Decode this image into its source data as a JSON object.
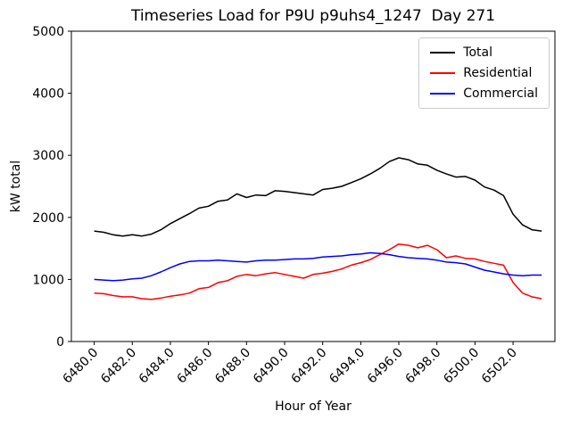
{
  "chart_data": {
    "type": "line",
    "title": "Timeseries Load for P9U p9uhs4_1247  Day 271",
    "xlabel": "Hour of Year",
    "ylabel": "kW total",
    "xlim": [
      6478.8,
      6504.2
    ],
    "ylim": [
      0,
      5000
    ],
    "grid": false,
    "legend_position": "upper right",
    "xticks": [
      6480,
      6482,
      6484,
      6486,
      6488,
      6490,
      6492,
      6494,
      6496,
      6498,
      6500,
      6502
    ],
    "xtick_labels": [
      "6480.0",
      "6482.0",
      "6484.0",
      "6486.0",
      "6488.0",
      "6490.0",
      "6492.0",
      "6494.0",
      "6496.0",
      "6498.0",
      "6500.0",
      "6502.0"
    ],
    "yticks": [
      0,
      1000,
      2000,
      3000,
      4000,
      5000
    ],
    "ytick_labels": [
      "0",
      "1000",
      "2000",
      "3000",
      "4000",
      "5000"
    ],
    "x": [
      6480.0,
      6480.5,
      6481.0,
      6481.5,
      6482.0,
      6482.5,
      6483.0,
      6483.5,
      6484.0,
      6484.5,
      6485.0,
      6485.5,
      6486.0,
      6486.5,
      6487.0,
      6487.5,
      6488.0,
      6488.5,
      6489.0,
      6489.5,
      6490.0,
      6490.5,
      6491.0,
      6491.5,
      6492.0,
      6492.5,
      6493.0,
      6493.5,
      6494.0,
      6494.5,
      6495.0,
      6495.5,
      6496.0,
      6496.5,
      6497.0,
      6497.5,
      6498.0,
      6498.5,
      6499.0,
      6499.5,
      6500.0,
      6500.5,
      6501.0,
      6501.5,
      6502.0,
      6502.5,
      6503.0,
      6503.5
    ],
    "series": [
      {
        "name": "Total",
        "color": "#000000",
        "values": [
          1780,
          1760,
          1720,
          1700,
          1720,
          1700,
          1730,
          1800,
          1900,
          1980,
          2060,
          2150,
          2180,
          2260,
          2280,
          2380,
          2320,
          2360,
          2350,
          2430,
          2420,
          2400,
          2380,
          2360,
          2450,
          2470,
          2500,
          2560,
          2620,
          2700,
          2790,
          2900,
          2960,
          2930,
          2860,
          2840,
          2760,
          2700,
          2650,
          2660,
          2600,
          2490,
          2440,
          2350,
          2050,
          1880,
          1800,
          1780
        ]
      },
      {
        "name": "Residential",
        "color": "#ff0000",
        "values": [
          780,
          770,
          740,
          720,
          720,
          690,
          680,
          700,
          730,
          750,
          780,
          850,
          870,
          950,
          980,
          1050,
          1080,
          1060,
          1090,
          1110,
          1080,
          1050,
          1020,
          1080,
          1100,
          1130,
          1170,
          1230,
          1270,
          1320,
          1400,
          1480,
          1570,
          1550,
          1510,
          1550,
          1480,
          1350,
          1380,
          1340,
          1330,
          1290,
          1260,
          1230,
          950,
          780,
          720,
          690
        ]
      },
      {
        "name": "Commercial",
        "color": "#0000ff",
        "values": [
          1000,
          990,
          980,
          990,
          1010,
          1020,
          1060,
          1120,
          1190,
          1250,
          1290,
          1300,
          1300,
          1310,
          1300,
          1290,
          1280,
          1300,
          1310,
          1310,
          1320,
          1330,
          1330,
          1340,
          1360,
          1370,
          1380,
          1400,
          1410,
          1430,
          1420,
          1400,
          1370,
          1350,
          1340,
          1330,
          1310,
          1280,
          1270,
          1250,
          1200,
          1150,
          1120,
          1090,
          1070,
          1060,
          1070,
          1070
        ]
      }
    ]
  }
}
